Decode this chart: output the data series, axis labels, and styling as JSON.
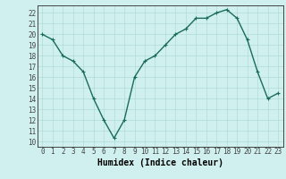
{
  "title": "",
  "xlabel": "Humidex (Indice chaleur)",
  "ylabel": "",
  "x": [
    0,
    1,
    2,
    3,
    4,
    5,
    6,
    7,
    8,
    9,
    10,
    11,
    12,
    13,
    14,
    15,
    16,
    17,
    18,
    19,
    20,
    21,
    22,
    23
  ],
  "y": [
    20.0,
    19.5,
    18.0,
    17.5,
    16.5,
    14.0,
    12.0,
    10.3,
    12.0,
    16.0,
    17.5,
    18.0,
    19.0,
    20.0,
    20.5,
    21.5,
    21.5,
    22.0,
    22.3,
    21.5,
    19.5,
    16.5,
    14.0,
    14.5
  ],
  "ylim": [
    9.5,
    22.7
  ],
  "xlim": [
    -0.5,
    23.5
  ],
  "yticks": [
    10,
    11,
    12,
    13,
    14,
    15,
    16,
    17,
    18,
    19,
    20,
    21,
    22
  ],
  "xticks": [
    0,
    1,
    2,
    3,
    4,
    5,
    6,
    7,
    8,
    9,
    10,
    11,
    12,
    13,
    14,
    15,
    16,
    17,
    18,
    19,
    20,
    21,
    22,
    23
  ],
  "line_color": "#1a6b5a",
  "marker_color": "#1a6b5a",
  "bg_color": "#cff0ee",
  "grid_color": "#b0dbd8",
  "axis_color": "#444444",
  "tick_label_fontsize": 5.5,
  "xlabel_fontsize": 7.0,
  "linewidth": 1.0,
  "markersize": 2.5
}
